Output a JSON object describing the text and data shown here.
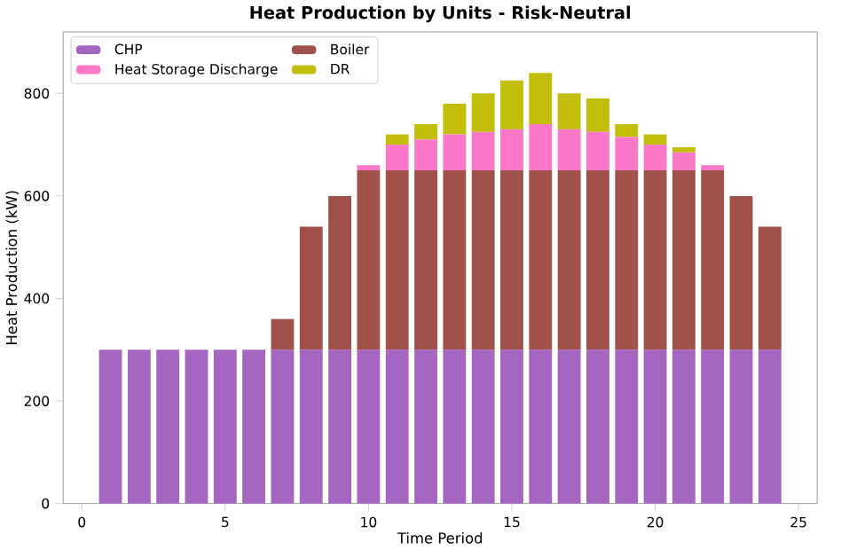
{
  "chart_data": {
    "type": "bar",
    "title": "Heat Production by Units - Risk-Neutral",
    "xlabel": "Time Period",
    "ylabel": "Heat Production (kW)",
    "x": [
      1,
      2,
      3,
      4,
      5,
      6,
      7,
      8,
      9,
      10,
      11,
      12,
      13,
      14,
      15,
      16,
      17,
      18,
      19,
      20,
      21,
      22,
      23,
      24
    ],
    "series": [
      {
        "name": "CHP",
        "color": "#a566c2",
        "values": [
          300,
          300,
          300,
          300,
          300,
          300,
          300,
          300,
          300,
          300,
          300,
          300,
          300,
          300,
          300,
          300,
          300,
          300,
          300,
          300,
          300,
          300,
          300,
          300
        ]
      },
      {
        "name": "Boiler",
        "color": "#a0524a",
        "values": [
          0,
          0,
          0,
          0,
          0,
          0,
          60,
          240,
          300,
          350,
          350,
          350,
          350,
          350,
          350,
          350,
          350,
          350,
          350,
          350,
          350,
          350,
          300,
          240
        ]
      },
      {
        "name": "Heat Storage Discharge",
        "color": "#fb78c9",
        "values": [
          0,
          0,
          0,
          0,
          0,
          0,
          0,
          0,
          0,
          10,
          50,
          60,
          70,
          75,
          80,
          90,
          80,
          75,
          65,
          50,
          35,
          10,
          0,
          0
        ]
      },
      {
        "name": "DR",
        "color": "#c2be0a",
        "values": [
          0,
          0,
          0,
          0,
          0,
          0,
          0,
          0,
          0,
          0,
          20,
          30,
          60,
          75,
          95,
          100,
          70,
          65,
          25,
          20,
          10,
          0,
          0,
          0
        ]
      }
    ],
    "stacked": true,
    "xlim": [
      -0.65,
      25.65
    ],
    "ylim": [
      0,
      920
    ],
    "xticks": [
      0,
      5,
      10,
      15,
      20,
      25
    ],
    "yticks": [
      0,
      200,
      400,
      600,
      800
    ],
    "legend": "top left"
  }
}
